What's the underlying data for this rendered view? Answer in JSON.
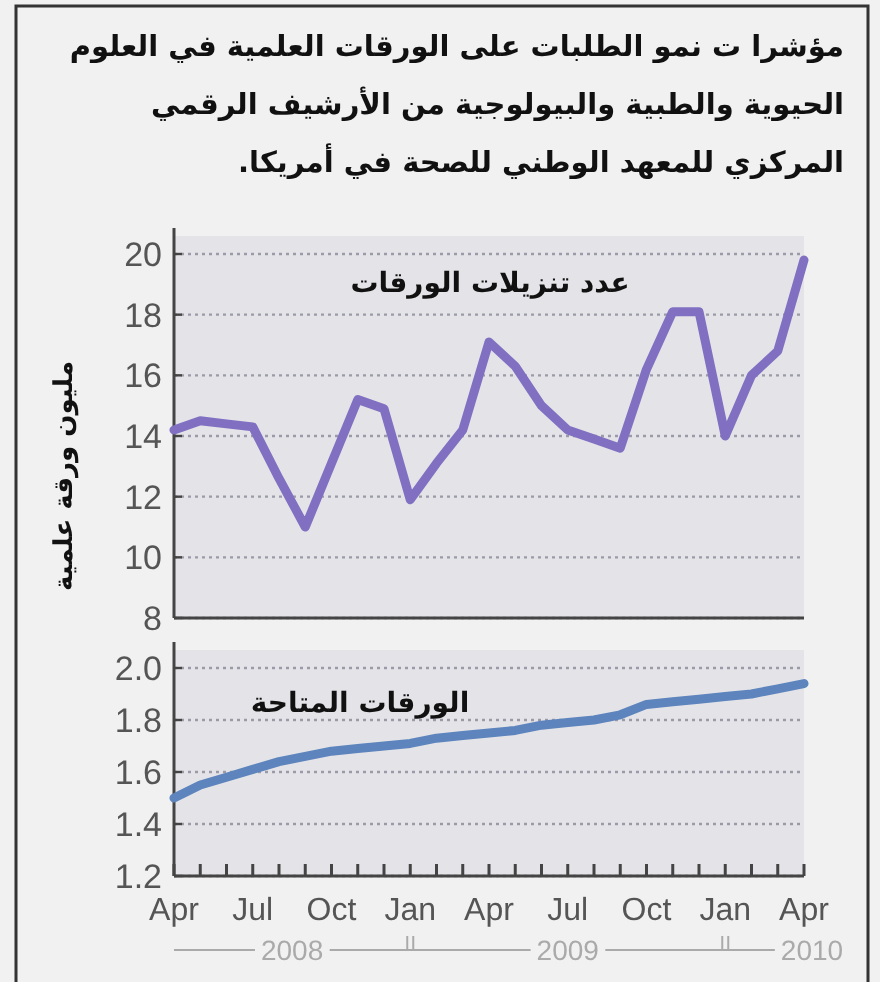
{
  "chart_data": [
    {
      "type": "line",
      "title": "مؤشرا ت نمو الطلبات على الورقات العلمية في العلوم الحيوية والطبية والبيولوجية من الأرشيف الرقمي المركزي للمعهد الوطني للصحة في أمريكا.",
      "subtitle": "عدد تنزيلات الورقات",
      "ylabel": "مليون ورقة علمية",
      "x": [
        "2008-04",
        "2008-05",
        "2008-06",
        "2008-07",
        "2008-08",
        "2008-09",
        "2008-10",
        "2008-11",
        "2008-12",
        "2009-01",
        "2009-02",
        "2009-03",
        "2009-04",
        "2009-05",
        "2009-06",
        "2009-07",
        "2009-08",
        "2009-09",
        "2009-10",
        "2009-11",
        "2009-12",
        "2010-01",
        "2010-02",
        "2010-03",
        "2010-04"
      ],
      "series": [
        {
          "color": "#8170c2",
          "values": [
            14.2,
            14.5,
            14.4,
            14.3,
            12.6,
            11.0,
            13.1,
            15.2,
            14.9,
            11.9,
            13.1,
            14.2,
            17.1,
            16.3,
            15.0,
            14.2,
            13.9,
            13.6,
            16.2,
            18.1,
            18.1,
            14.0,
            16.0,
            16.8,
            19.8
          ]
        }
      ],
      "xlim": [
        "2008-04",
        "2010-04"
      ],
      "ylim": [
        8,
        20
      ],
      "yticks": [
        8,
        10,
        12,
        14,
        16,
        18,
        20
      ],
      "grid": "y",
      "tick_labels": "y",
      "line_style": "solid"
    },
    {
      "type": "line",
      "title": "الورقات المتاحة",
      "x": [
        "2008-04",
        "2008-05",
        "2008-06",
        "2008-07",
        "2008-08",
        "2008-09",
        "2008-10",
        "2008-11",
        "2008-12",
        "2009-01",
        "2009-02",
        "2009-03",
        "2009-04",
        "2009-05",
        "2009-06",
        "2009-07",
        "2009-08",
        "2009-09",
        "2009-10",
        "2009-11",
        "2009-12",
        "2010-01",
        "2010-02",
        "2010-03",
        "2010-04"
      ],
      "series": [
        {
          "color": "#5d84bd",
          "values": [
            1.5,
            1.55,
            1.58,
            1.61,
            1.64,
            1.66,
            1.68,
            1.69,
            1.7,
            1.71,
            1.73,
            1.74,
            1.75,
            1.76,
            1.78,
            1.79,
            1.8,
            1.82,
            1.86,
            1.87,
            1.88,
            1.89,
            1.9,
            1.92,
            1.94
          ]
        }
      ],
      "xlim": [
        "2008-04",
        "2010-04"
      ],
      "ylim": [
        1.2,
        2.0
      ],
      "yticks": [
        1.2,
        1.4,
        1.6,
        1.8,
        {
          "value": 2.0,
          "label": "2.0"
        }
      ],
      "xticks": [
        {
          "value": "2008-04",
          "label": "Apr"
        },
        {
          "value": "2008-05",
          "label": null
        },
        {
          "value": "2008-06",
          "label": null
        },
        {
          "value": "2008-07",
          "label": "Jul"
        },
        {
          "value": "2008-08",
          "label": null
        },
        {
          "value": "2008-09",
          "label": null
        },
        {
          "value": "2008-10",
          "label": "Oct"
        },
        {
          "value": "2008-11",
          "label": null
        },
        {
          "value": "2008-12",
          "label": null
        },
        {
          "value": "2009-01",
          "label": "Jan"
        },
        {
          "value": "2009-02",
          "label": null
        },
        {
          "value": "2009-03",
          "label": null
        },
        {
          "value": "2009-04",
          "label": "Apr"
        },
        {
          "value": "2009-05",
          "label": null
        },
        {
          "value": "2009-06",
          "label": null
        },
        {
          "value": "2009-07",
          "label": "Jul"
        },
        {
          "value": "2009-08",
          "label": null
        },
        {
          "value": "2009-09",
          "label": null
        },
        {
          "value": "2009-10",
          "label": "Oct"
        },
        {
          "value": "2009-11",
          "label": null
        },
        {
          "value": "2009-12",
          "label": null
        },
        {
          "value": "2010-01",
          "label": "Jan"
        },
        {
          "value": "2010-02",
          "label": null
        },
        {
          "value": "2010-03",
          "label": null
        },
        {
          "value": "2010-04",
          "label": "Apr"
        }
      ],
      "annotations": [
        "2008",
        "2009",
        "2010"
      ],
      "grid": "y",
      "line_style": "solid"
    }
  ]
}
